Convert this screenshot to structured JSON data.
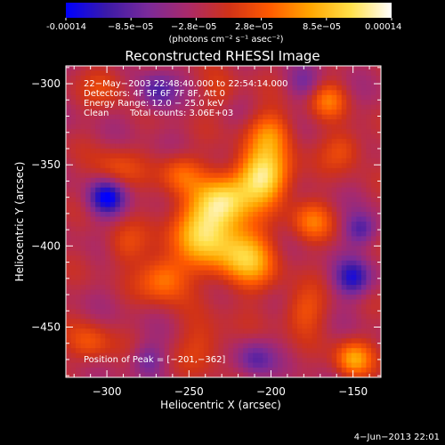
{
  "colorbar": {
    "min_label": "-0.00014",
    "tick_labels": [
      "-0.00014",
      "−8.5e−05",
      "−2.8e−05",
      "2.8e−05",
      "8.5e−05",
      "0.00014"
    ],
    "units_label": "(photons cm⁻² s⁻¹ asec⁻²)",
    "colors": [
      "#0000ff",
      "#3b1aa8",
      "#7a2a9a",
      "#aa2a6a",
      "#d03218",
      "#ff5a00",
      "#ffa600",
      "#ffe04a",
      "#ffffff"
    ]
  },
  "chart_data": {
    "type": "heatmap",
    "title": "Reconstructed RHESSI Image",
    "xlabel": "Heliocentric X (arcsec)",
    "ylabel": "Heliocentric Y (arcsec)",
    "xlim": [
      -325,
      -133
    ],
    "ylim": [
      -481,
      -289
    ],
    "x_ticks": [
      -300,
      -250,
      -200,
      -150
    ],
    "y_ticks": [
      -300,
      -350,
      -400,
      -450
    ],
    "x_tick_labels": [
      "−300",
      "−250",
      "−200",
      "−150"
    ],
    "y_tick_labels": [
      "−300",
      "−350",
      "−400",
      "−450"
    ],
    "value_range": [
      -0.00014,
      0.00014
    ],
    "blobs": [
      {
        "x": -205,
        "y": -357,
        "value": 0.00014,
        "sigma": 12
      },
      {
        "x": -240,
        "y": -390,
        "value": 0.00012,
        "sigma": 15
      },
      {
        "x": -215,
        "y": -408,
        "value": 0.0001,
        "sigma": 13
      },
      {
        "x": -228,
        "y": -372,
        "value": 9e-05,
        "sigma": 11
      },
      {
        "x": -265,
        "y": -420,
        "value": 8e-05,
        "sigma": 10
      },
      {
        "x": -255,
        "y": -355,
        "value": 6e-05,
        "sigma": 9
      },
      {
        "x": -200,
        "y": -330,
        "value": 7e-05,
        "sigma": 10
      },
      {
        "x": -175,
        "y": -385,
        "value": 6e-05,
        "sigma": 9
      },
      {
        "x": -295,
        "y": -355,
        "value": 5e-05,
        "sigma": 10
      },
      {
        "x": -150,
        "y": -470,
        "value": 9e-05,
        "sigma": 8
      },
      {
        "x": -155,
        "y": -340,
        "value": 5e-05,
        "sigma": 9
      },
      {
        "x": -165,
        "y": -310,
        "value": 6e-05,
        "sigma": 8
      },
      {
        "x": -240,
        "y": -460,
        "value": 4e-05,
        "sigma": 11
      },
      {
        "x": -180,
        "y": -440,
        "value": 5e-05,
        "sigma": 10
      },
      {
        "x": -290,
        "y": -400,
        "value": 4e-05,
        "sigma": 9
      },
      {
        "x": -310,
        "y": -460,
        "value": 5e-05,
        "sigma": 9
      },
      {
        "x": -300,
        "y": -300,
        "value": 4e-05,
        "sigma": 9
      },
      {
        "x": -230,
        "y": -305,
        "value": 3e-05,
        "sigma": 8
      },
      {
        "x": -300,
        "y": -370,
        "value": -0.00012,
        "sigma": 8
      },
      {
        "x": -150,
        "y": -420,
        "value": -9e-05,
        "sigma": 8
      },
      {
        "x": -270,
        "y": -305,
        "value": -7e-05,
        "sigma": 8
      },
      {
        "x": -210,
        "y": -470,
        "value": -6e-05,
        "sigma": 8
      },
      {
        "x": -145,
        "y": -390,
        "value": -7e-05,
        "sigma": 7
      },
      {
        "x": -275,
        "y": -470,
        "value": -5e-05,
        "sigma": 7
      },
      {
        "x": -180,
        "y": -300,
        "value": -4e-05,
        "sigma": 7
      }
    ],
    "annotations": {
      "time": "22−May−2003 22:48:40.000 to 22:54:14.000",
      "detectors": "Detectors: 4F 5F 6F 7F 8F, Att 0",
      "energy": "Energy Range: 12.0 − 25.0 keV",
      "clean": "Clean",
      "counts": "Total counts: 3.06E+03",
      "peak": "Position of Peak = [−201,−362]"
    },
    "grid": false
  },
  "footer": {
    "date": "4−Jun−2013 22:01"
  }
}
